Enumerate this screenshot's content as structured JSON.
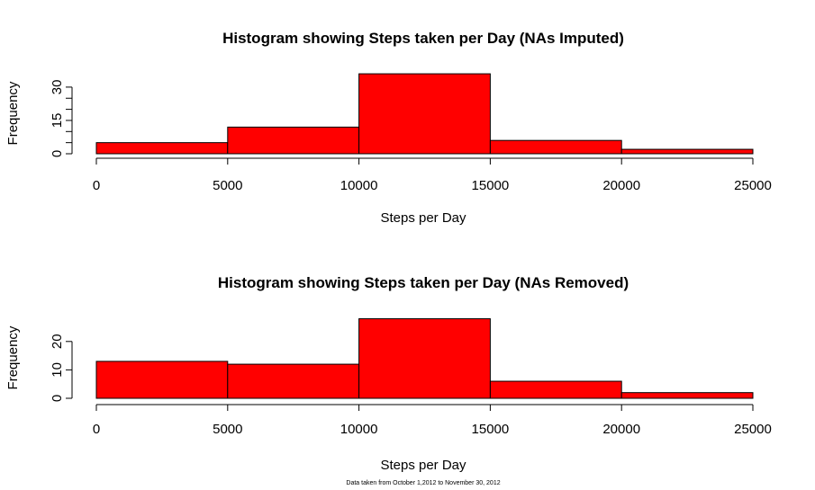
{
  "chart_data": [
    {
      "type": "bar",
      "title": "Histogram showing Steps taken per Day (NAs Imputed)",
      "xlabel": "Steps per Day",
      "ylabel": "Frequency",
      "bins": [
        [
          0,
          5000
        ],
        [
          5000,
          10000
        ],
        [
          10000,
          15000
        ],
        [
          15000,
          20000
        ],
        [
          20000,
          25000
        ]
      ],
      "values": [
        5,
        12,
        36,
        6,
        2
      ],
      "xlim": [
        0,
        25000
      ],
      "x_ticks": [
        "0",
        "5000",
        "10000",
        "15000",
        "20000",
        "25000"
      ],
      "y_ticks": [
        "0",
        "15",
        "30"
      ],
      "color": "#ff0000"
    },
    {
      "type": "bar",
      "title": "Histogram showing Steps taken per Day (NAs Removed)",
      "xlabel": "Steps per Day",
      "ylabel": "Frequency",
      "bins": [
        [
          0,
          5000
        ],
        [
          5000,
          10000
        ],
        [
          10000,
          15000
        ],
        [
          15000,
          20000
        ],
        [
          20000,
          25000
        ]
      ],
      "values": [
        13,
        12,
        28,
        6,
        2
      ],
      "xlim": [
        0,
        25000
      ],
      "x_ticks": [
        "0",
        "5000",
        "10000",
        "15000",
        "20000",
        "25000"
      ],
      "y_ticks": [
        "0",
        "10",
        "20"
      ],
      "color": "#ff0000"
    }
  ],
  "caption": "Data taken from October 1,2012 to November 30, 2012"
}
